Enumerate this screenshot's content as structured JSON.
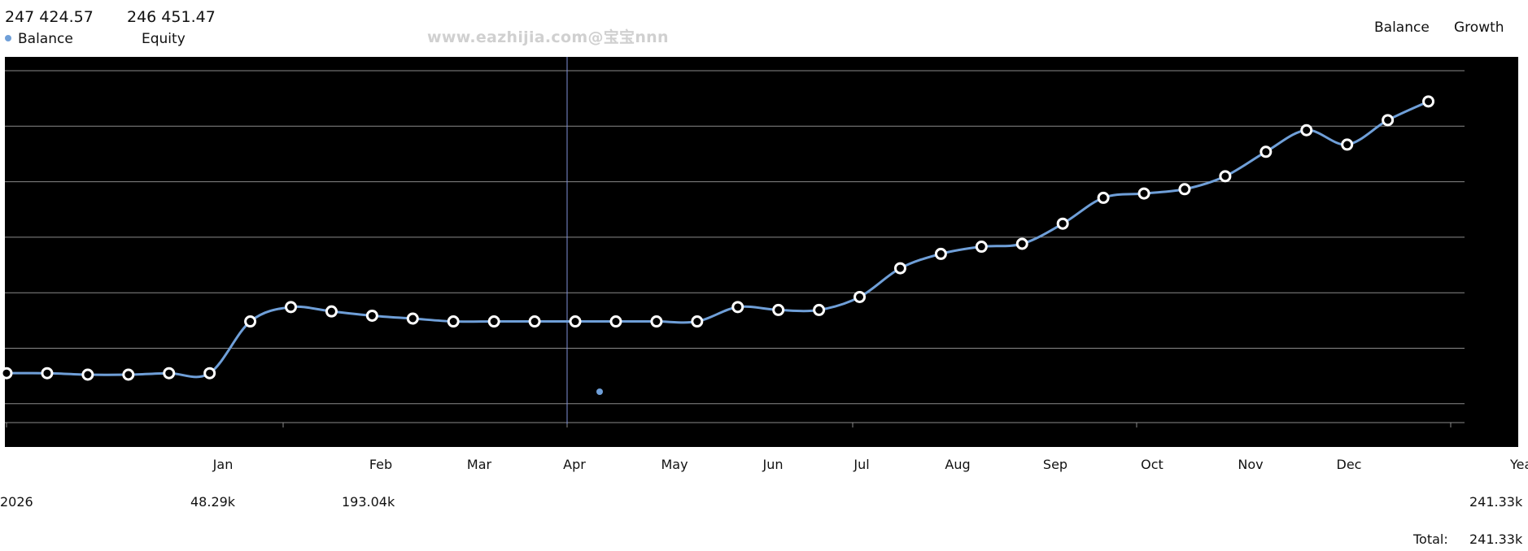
{
  "header": {
    "balance_value": "247 424.57",
    "equity_value": "246 451.47",
    "balance_label": "Balance",
    "equity_label": "Equity",
    "watermark": "www.eazhijia.com@宝宝nnn"
  },
  "toggles": {
    "balance": "Balance",
    "growth": "Growth"
  },
  "colors": {
    "plot_bg": "#000000",
    "line": "#6f9fd8",
    "grid": "#8a8a8a",
    "crosshair": "#7f8fd8",
    "marker_fill": "#000000",
    "marker_stroke": "#ffffff"
  },
  "chart_data": {
    "type": "line",
    "title": "",
    "series": [
      {
        "name": "Balance",
        "values": [
          20,
          20,
          19.5,
          19.5,
          20,
          20,
          38,
          43,
          41.5,
          40,
          39,
          38,
          38,
          38,
          38,
          38,
          38,
          38,
          43,
          42,
          42,
          46.5,
          56.5,
          61.5,
          64,
          65,
          72,
          81,
          82.5,
          84,
          88.5,
          97,
          104.5,
          99.5,
          108,
          114.5
        ]
      }
    ],
    "ylim": [
      0,
      130
    ],
    "grid": true,
    "month_labels": [
      "Jan",
      "Feb",
      "Mar",
      "Apr",
      "May",
      "Jun",
      "Jul",
      "Aug",
      "Sep",
      "Oct",
      "Nov",
      "Dec"
    ],
    "year_axis_label": "Year",
    "yearly": {
      "year": "2026",
      "values": [
        "48.29k",
        "193.04k"
      ],
      "year_total": "241.33k"
    },
    "total_label": "Total:",
    "total_value": "241.33k"
  }
}
